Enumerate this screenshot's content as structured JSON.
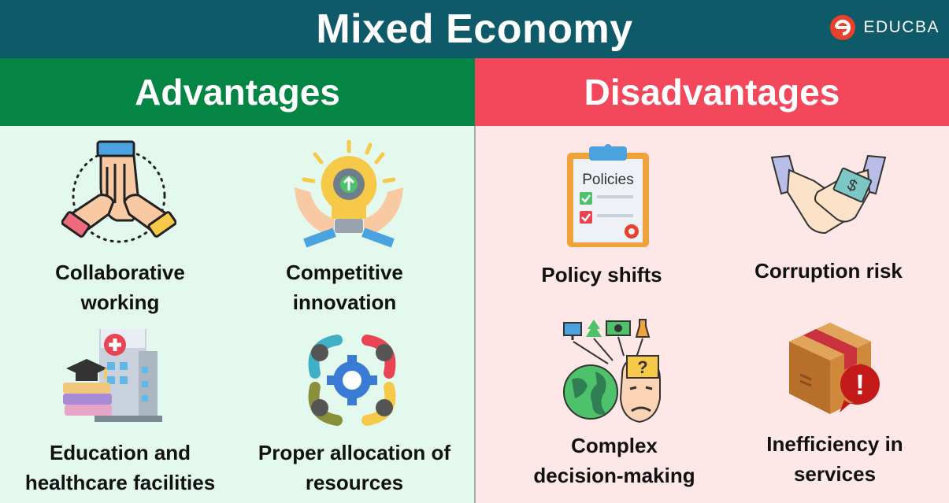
{
  "header": {
    "title": "Mixed Economy",
    "brand": "EDUCBA"
  },
  "advantages": {
    "heading": "Advantages",
    "items": [
      {
        "label": "Collaborative\nworking",
        "icon": "teamwork-hands-icon"
      },
      {
        "label": "Competitive\ninnovation",
        "icon": "lightbulb-gear-icon"
      },
      {
        "label": "Education and\nhealthcare facilities",
        "icon": "school-hospital-icon"
      },
      {
        "label": "Proper allocation of\nresources",
        "icon": "resource-gear-icon"
      }
    ]
  },
  "disadvantages": {
    "heading": "Disadvantages",
    "items": [
      {
        "label": "Policy shifts",
        "icon": "policies-clipboard-icon",
        "icon_text": "Policies"
      },
      {
        "label": "Corruption risk",
        "icon": "bribe-handshake-icon",
        "icon_text": "$"
      },
      {
        "label": "Complex\ndecision-making",
        "icon": "confused-head-icon",
        "icon_text": "?"
      },
      {
        "label": "Inefficiency in\nservices",
        "icon": "box-warning-icon",
        "icon_text": "!"
      }
    ]
  },
  "colors": {
    "header": "#0e5a69",
    "advantages": "#048543",
    "disadvantages": "#f3485b",
    "adv_bg": "#e4f9ee",
    "dis_bg": "#fde7e7",
    "brand_accent": "#e8412c"
  }
}
